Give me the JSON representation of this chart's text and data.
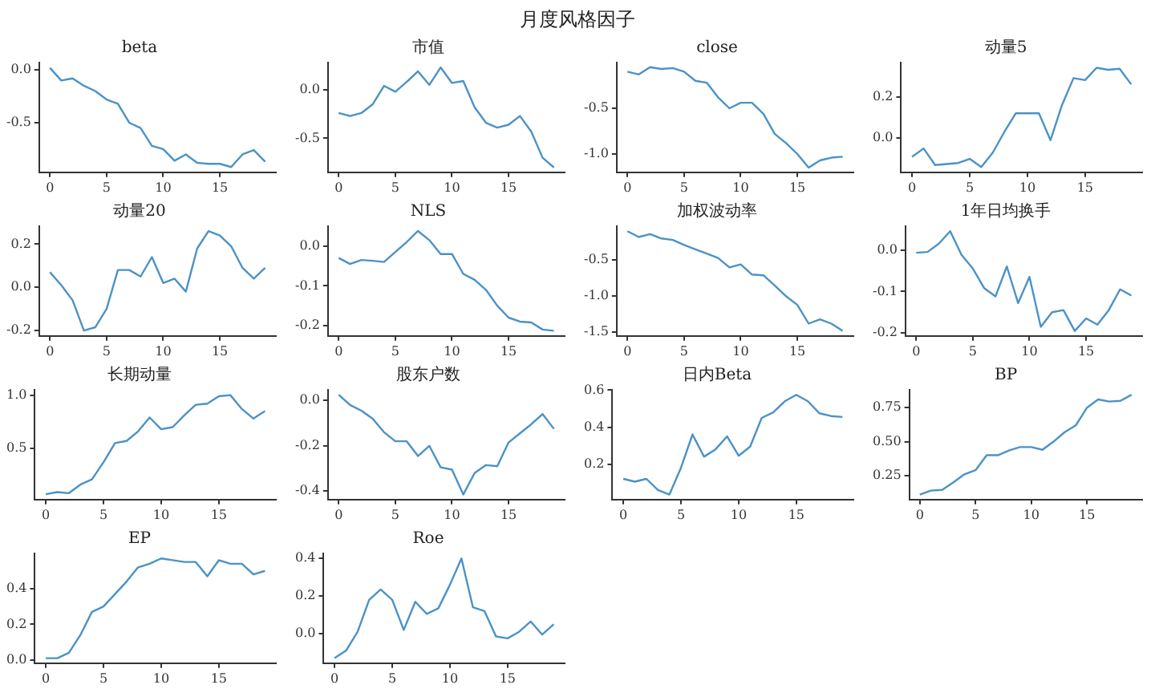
{
  "chart_data": [
    {
      "type": "line",
      "title": "beta",
      "annotations": [
        "月度风格因子"
      ],
      "x": [
        0,
        1,
        2,
        3,
        4,
        5,
        6,
        7,
        8,
        9,
        10,
        11,
        12,
        13,
        14,
        15,
        16,
        17,
        18,
        19
      ],
      "series": [
        {
          "color": "#4b92c7",
          "values": [
            0.02,
            -0.1,
            -0.08,
            -0.15,
            -0.2,
            -0.28,
            -0.32,
            -0.5,
            -0.55,
            -0.72,
            -0.75,
            -0.86,
            -0.8,
            -0.88,
            -0.89,
            -0.89,
            -0.92,
            -0.8,
            -0.76,
            -0.87
          ]
        }
      ],
      "xlim": [
        -0.95,
        19.95
      ],
      "xticks": [
        0,
        5,
        10,
        15
      ],
      "ylim": [
        -0.97,
        0.07
      ],
      "yticks": [
        {
          "value": 0,
          "label": "0.0"
        },
        -0.5
      ]
    },
    {
      "type": "line",
      "title": "市值",
      "x": [
        0,
        1,
        2,
        3,
        4,
        5,
        6,
        7,
        8,
        9,
        10,
        11,
        12,
        13,
        14,
        15,
        16,
        17,
        18,
        19
      ],
      "series": [
        {
          "color": "#4b92c7",
          "values": [
            -0.24,
            -0.27,
            -0.24,
            -0.15,
            0.04,
            -0.02,
            0.08,
            0.19,
            0.05,
            0.23,
            0.07,
            0.09,
            -0.18,
            -0.34,
            -0.39,
            -0.36,
            -0.27,
            -0.43,
            -0.7,
            -0.8
          ]
        }
      ],
      "xlim": [
        -0.95,
        19.95
      ],
      "xticks": [
        0,
        5,
        10,
        15
      ],
      "ylim": [
        -0.85,
        0.28
      ],
      "yticks": [
        {
          "value": 0,
          "label": "0.0"
        },
        -0.5
      ]
    },
    {
      "type": "line",
      "title": "close",
      "x": [
        0,
        1,
        2,
        3,
        4,
        5,
        6,
        7,
        8,
        9,
        10,
        11,
        12,
        13,
        14,
        15,
        16,
        17,
        18,
        19
      ],
      "series": [
        {
          "color": "#4b92c7",
          "values": [
            -0.1,
            -0.13,
            -0.05,
            -0.07,
            -0.06,
            -0.1,
            -0.2,
            -0.22,
            -0.38,
            -0.5,
            -0.44,
            -0.44,
            -0.56,
            -0.78,
            -0.88,
            -1.0,
            -1.15,
            -1.07,
            -1.04,
            -1.03
          ]
        }
      ],
      "xlim": [
        -0.95,
        19.95
      ],
      "xticks": [
        0,
        5,
        10,
        15
      ],
      "ylim": [
        -1.2,
        0.0
      ],
      "yticks": [
        -0.5,
        {
          "value": -1,
          "label": "-1.0"
        }
      ]
    },
    {
      "type": "line",
      "title": "动量5",
      "x": [
        0,
        1,
        2,
        3,
        4,
        5,
        6,
        7,
        8,
        9,
        10,
        11,
        12,
        13,
        14,
        15,
        16,
        17,
        18,
        19
      ],
      "series": [
        {
          "color": "#4b92c7",
          "values": [
            -0.09,
            -0.05,
            -0.13,
            -0.125,
            -0.12,
            -0.1,
            -0.14,
            -0.07,
            0.03,
            0.12,
            0.12,
            0.12,
            -0.01,
            0.16,
            0.29,
            0.28,
            0.34,
            0.33,
            0.335,
            0.26
          ]
        }
      ],
      "xlim": [
        -0.95,
        19.95
      ],
      "xticks": [
        0,
        5,
        10,
        15
      ],
      "ylim": [
        -0.165,
        0.365
      ],
      "yticks": [
        {
          "value": 0,
          "label": "0.0"
        },
        0.2
      ]
    },
    {
      "type": "line",
      "title": "动量20",
      "x": [
        0,
        1,
        2,
        3,
        4,
        5,
        6,
        7,
        8,
        9,
        10,
        11,
        12,
        13,
        14,
        15,
        16,
        17,
        18,
        19
      ],
      "series": [
        {
          "color": "#4b92c7",
          "values": [
            0.07,
            0.01,
            -0.06,
            -0.2,
            -0.185,
            -0.1,
            0.08,
            0.08,
            0.05,
            0.14,
            0.02,
            0.04,
            -0.02,
            0.18,
            0.26,
            0.24,
            0.19,
            0.09,
            0.04,
            0.09
          ]
        }
      ],
      "xlim": [
        -0.95,
        19.95
      ],
      "xticks": [
        0,
        5,
        10,
        15
      ],
      "ylim": [
        -0.225,
        0.283
      ],
      "yticks": [
        -0.2,
        {
          "value": 0,
          "label": "0.0"
        },
        0.2
      ]
    },
    {
      "type": "line",
      "title": "NLS",
      "x": [
        0,
        1,
        2,
        3,
        4,
        5,
        6,
        7,
        8,
        9,
        10,
        11,
        12,
        13,
        14,
        15,
        16,
        17,
        18,
        19
      ],
      "series": [
        {
          "color": "#4b92c7",
          "values": [
            -0.03,
            -0.045,
            -0.035,
            -0.037,
            -0.04,
            -0.015,
            0.01,
            0.038,
            0.015,
            -0.02,
            -0.02,
            -0.07,
            -0.085,
            -0.11,
            -0.15,
            -0.18,
            -0.19,
            -0.192,
            -0.21,
            -0.213
          ]
        }
      ],
      "xlim": [
        -0.95,
        19.95
      ],
      "xticks": [
        0,
        5,
        10,
        15
      ],
      "ylim": [
        -0.226,
        0.05
      ],
      "yticks": [
        -0.2,
        -0.1,
        {
          "value": 0,
          "label": "0.0"
        }
      ]
    },
    {
      "type": "line",
      "title": "加权波动率",
      "x": [
        0,
        1,
        2,
        3,
        4,
        5,
        6,
        7,
        8,
        9,
        10,
        11,
        12,
        13,
        14,
        15,
        16,
        17,
        18,
        19
      ],
      "series": [
        {
          "color": "#4b92c7",
          "values": [
            -0.1,
            -0.18,
            -0.14,
            -0.2,
            -0.22,
            -0.29,
            -0.35,
            -0.41,
            -0.47,
            -0.6,
            -0.56,
            -0.7,
            -0.71,
            -0.85,
            -1.0,
            -1.12,
            -1.38,
            -1.32,
            -1.38,
            -1.48
          ]
        }
      ],
      "xlim": [
        -0.95,
        19.95
      ],
      "xticks": [
        0,
        5,
        10,
        15
      ],
      "ylim": [
        -1.55,
        -0.03
      ],
      "yticks": [
        -1.5,
        {
          "value": -1,
          "label": "-1.0"
        },
        -0.5
      ]
    },
    {
      "type": "line",
      "title": "1年日均换手",
      "x": [
        0,
        1,
        2,
        3,
        4,
        5,
        6,
        7,
        8,
        9,
        10,
        11,
        12,
        13,
        14,
        15,
        16,
        17,
        18,
        19
      ],
      "series": [
        {
          "color": "#4b92c7",
          "values": [
            -0.007,
            -0.005,
            0.015,
            0.045,
            -0.012,
            -0.045,
            -0.092,
            -0.112,
            -0.04,
            -0.128,
            -0.065,
            -0.185,
            -0.15,
            -0.145,
            -0.195,
            -0.165,
            -0.18,
            -0.145,
            -0.095,
            -0.11
          ]
        }
      ],
      "xlim": [
        -0.95,
        19.95
      ],
      "xticks": [
        0,
        5,
        10,
        15
      ],
      "ylim": [
        -0.207,
        0.057
      ],
      "yticks": [
        -0.2,
        -0.1,
        {
          "value": 0,
          "label": "0.0"
        }
      ]
    },
    {
      "type": "line",
      "title": "长期动量",
      "x": [
        0,
        1,
        2,
        3,
        4,
        5,
        6,
        7,
        8,
        9,
        10,
        11,
        12,
        13,
        14,
        15,
        16,
        17,
        18,
        19
      ],
      "series": [
        {
          "color": "#4b92c7",
          "values": [
            0.07,
            0.09,
            0.08,
            0.16,
            0.21,
            0.37,
            0.55,
            0.57,
            0.66,
            0.79,
            0.68,
            0.7,
            0.81,
            0.91,
            0.92,
            0.99,
            1.0,
            0.87,
            0.78,
            0.85
          ]
        }
      ],
      "xlim": [
        -0.95,
        19.95
      ],
      "xticks": [
        0,
        5,
        10,
        15
      ],
      "ylim": [
        0.02,
        1.05
      ],
      "yticks": [
        0.5,
        {
          "value": 1,
          "label": "1.0"
        }
      ]
    },
    {
      "type": "line",
      "title": "股东户数",
      "x": [
        0,
        1,
        2,
        3,
        4,
        5,
        6,
        7,
        8,
        9,
        10,
        11,
        12,
        13,
        14,
        15,
        16,
        17,
        18,
        19
      ],
      "series": [
        {
          "color": "#4b92c7",
          "values": [
            0.025,
            -0.02,
            -0.045,
            -0.08,
            -0.14,
            -0.18,
            -0.18,
            -0.245,
            -0.2,
            -0.295,
            -0.305,
            -0.415,
            -0.32,
            -0.285,
            -0.29,
            -0.185,
            -0.145,
            -0.105,
            -0.06,
            -0.125
          ]
        }
      ],
      "xlim": [
        -0.95,
        19.95
      ],
      "xticks": [
        0,
        5,
        10,
        15
      ],
      "ylim": [
        -0.437,
        0.047
      ],
      "yticks": [
        -0.4,
        -0.2,
        {
          "value": 0,
          "label": "0.0"
        }
      ]
    },
    {
      "type": "line",
      "title": "日内Beta",
      "x": [
        0,
        1,
        2,
        3,
        4,
        5,
        6,
        7,
        8,
        9,
        10,
        11,
        12,
        13,
        14,
        15,
        16,
        17,
        18,
        19
      ],
      "series": [
        {
          "color": "#4b92c7",
          "values": [
            0.12,
            0.105,
            0.12,
            0.06,
            0.035,
            0.18,
            0.36,
            0.24,
            0.28,
            0.35,
            0.245,
            0.295,
            0.45,
            0.48,
            0.54,
            0.575,
            0.54,
            0.475,
            0.46,
            0.455
          ]
        }
      ],
      "xlim": [
        -0.95,
        19.95
      ],
      "xticks": [
        0,
        5,
        10,
        15
      ],
      "ylim": [
        0.008,
        0.602
      ],
      "yticks": [
        0.2,
        0.4,
        0.6
      ]
    },
    {
      "type": "line",
      "title": "BP",
      "x": [
        0,
        1,
        2,
        3,
        4,
        5,
        6,
        7,
        8,
        9,
        10,
        11,
        12,
        13,
        14,
        15,
        16,
        17,
        18,
        19
      ],
      "series": [
        {
          "color": "#4b92c7",
          "values": [
            0.11,
            0.14,
            0.145,
            0.2,
            0.26,
            0.29,
            0.4,
            0.4,
            0.435,
            0.46,
            0.46,
            0.44,
            0.5,
            0.57,
            0.62,
            0.75,
            0.81,
            0.795,
            0.8,
            0.845
          ]
        }
      ],
      "xlim": [
        -0.95,
        19.95
      ],
      "xticks": [
        0,
        5,
        10,
        15
      ],
      "ylim": [
        0.074,
        0.881
      ],
      "yticks": [
        0.25,
        {
          "value": 0.5,
          "label": "0.50"
        },
        0.75
      ]
    },
    {
      "type": "line",
      "title": "EP",
      "x": [
        0,
        1,
        2,
        3,
        4,
        5,
        6,
        7,
        8,
        9,
        10,
        11,
        12,
        13,
        14,
        15,
        16,
        17,
        18,
        19
      ],
      "series": [
        {
          "color": "#4b92c7",
          "values": [
            0.01,
            0.01,
            0.04,
            0.14,
            0.27,
            0.3,
            0.37,
            0.44,
            0.52,
            0.54,
            0.57,
            0.56,
            0.55,
            0.55,
            0.47,
            0.56,
            0.54,
            0.54,
            0.48,
            0.5
          ]
        }
      ],
      "xlim": [
        -0.95,
        19.95
      ],
      "xticks": [
        0,
        5,
        10,
        15
      ],
      "ylim": [
        -0.018,
        0.598
      ],
      "yticks": [
        {
          "value": 0,
          "label": "0.0"
        },
        0.2,
        0.4
      ]
    },
    {
      "type": "line",
      "title": "Roe",
      "x": [
        0,
        1,
        2,
        3,
        4,
        5,
        6,
        7,
        8,
        9,
        10,
        11,
        12,
        13,
        14,
        15,
        16,
        17,
        18,
        19
      ],
      "series": [
        {
          "color": "#4b92c7",
          "values": [
            -0.13,
            -0.09,
            0.01,
            0.18,
            0.235,
            0.18,
            0.02,
            0.17,
            0.105,
            0.135,
            0.26,
            0.4,
            0.14,
            0.12,
            -0.015,
            -0.025,
            0.01,
            0.065,
            -0.005,
            0.05
          ]
        }
      ],
      "xlim": [
        -0.95,
        19.95
      ],
      "xticks": [
        0,
        5,
        10,
        15
      ],
      "ylim": [
        -0.157,
        0.427
      ],
      "yticks": [
        {
          "value": 0,
          "label": "0.0"
        },
        0.2,
        0.4
      ]
    }
  ]
}
